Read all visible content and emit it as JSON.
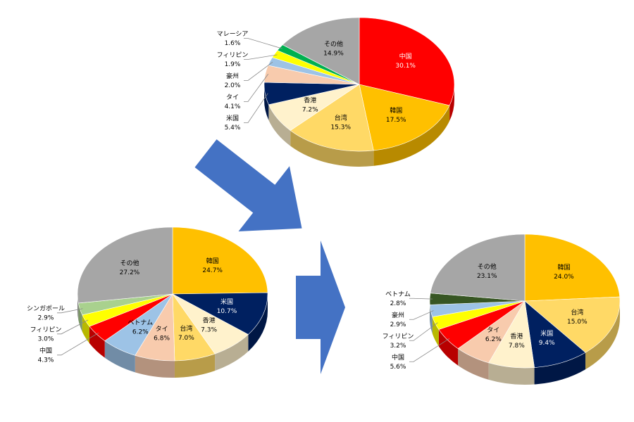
{
  "chart_data": [
    {
      "type": "pie",
      "categories": [
        "中国",
        "韓国",
        "台湾",
        "香港",
        "米国",
        "タイ",
        "豪州",
        "フィリピン",
        "マレーシア",
        "その他"
      ],
      "values": [
        30.1,
        17.5,
        15.3,
        7.2,
        5.4,
        4.1,
        2.0,
        1.9,
        1.6,
        14.9
      ],
      "value_labels": [
        "30.1%",
        "17.5%",
        "15.3%",
        "7.2%",
        "5.4%",
        "4.1%",
        "2.0%",
        "1.9%",
        "1.6%",
        "14.9%"
      ],
      "colors": [
        "#ff0000",
        "#ffc000",
        "#ffd966",
        "#fff2cc",
        "#002060",
        "#f8cbad",
        "#9dc3e6",
        "#ffff00",
        "#00b050",
        "#a6a6a6"
      ]
    },
    {
      "type": "pie",
      "categories": [
        "韓国",
        "米国",
        "香港",
        "台湾",
        "タイ",
        "ベトナム",
        "中国",
        "フィリピン",
        "シンガポール",
        "その他"
      ],
      "values": [
        24.7,
        10.7,
        7.3,
        7.0,
        6.8,
        6.2,
        4.3,
        3.0,
        2.9,
        27.2
      ],
      "value_labels": [
        "24.7%",
        "10.7%",
        "7.3%",
        "7.0%",
        "6.8%",
        "6.2%",
        "4.3%",
        "3.0%",
        "2.9%",
        "27.2%"
      ],
      "colors": [
        "#ffc000",
        "#002060",
        "#fff2cc",
        "#ffd966",
        "#f8cbad",
        "#9dc3e6",
        "#ff0000",
        "#ffff00",
        "#a9d18e",
        "#a6a6a6"
      ]
    },
    {
      "type": "pie",
      "categories": [
        "韓国",
        "台湾",
        "米国",
        "香港",
        "タイ",
        "中国",
        "フィリピン",
        "豪州",
        "ベトナム",
        "その他"
      ],
      "values": [
        24.0,
        15.0,
        9.4,
        7.8,
        6.2,
        5.6,
        3.2,
        2.9,
        2.8,
        23.1
      ],
      "value_labels": [
        "24.0%",
        "15.0%",
        "9.4%",
        "7.8%",
        "6.2%",
        "5.6%",
        "3.2%",
        "2.9%",
        "2.8%",
        "23.1%"
      ],
      "colors": [
        "#ffc000",
        "#ffd966",
        "#002060",
        "#fff2cc",
        "#f8cbad",
        "#ff0000",
        "#ffff00",
        "#9dc3e6",
        "#375623",
        "#a6a6a6"
      ]
    }
  ]
}
